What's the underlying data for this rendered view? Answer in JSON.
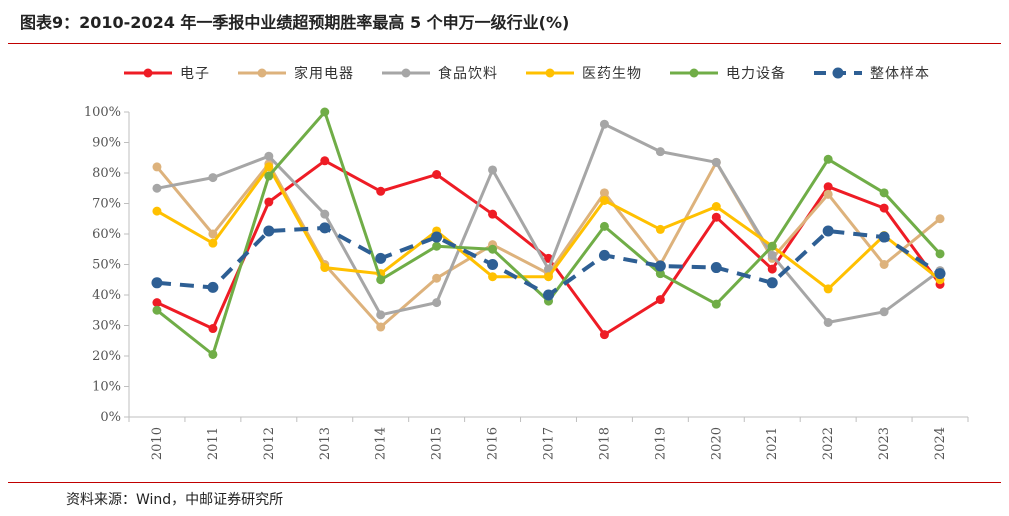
{
  "header": {
    "title": "图表9：2010-2024 年一季报中业绩超预期胜率最高 5 个申万一级行业(%)"
  },
  "footer": {
    "source": "资料来源：Wind，中邮证券研究所"
  },
  "chart_data": {
    "type": "line",
    "x": [
      "2010",
      "2011",
      "2012",
      "2013",
      "2014",
      "2015",
      "2016",
      "2017",
      "2018",
      "2019",
      "2020",
      "2021",
      "2022",
      "2023",
      "2024"
    ],
    "y_ticks": [
      "0%",
      "10%",
      "20%",
      "30%",
      "40%",
      "50%",
      "60%",
      "70%",
      "80%",
      "90%",
      "100%"
    ],
    "ylim": [
      0,
      100
    ],
    "legend_position": "top",
    "grid": false,
    "series": [
      {
        "name": "电子",
        "color": "#ee1c25",
        "dashed": false,
        "values": [
          37.5,
          29,
          70.5,
          84,
          74,
          79.5,
          66.5,
          52,
          27,
          38.5,
          65.5,
          48.5,
          75.5,
          68.5,
          43.5
        ]
      },
      {
        "name": "家用电器",
        "color": "#ddb27c",
        "dashed": false,
        "values": [
          82,
          60,
          83,
          50,
          29.5,
          45.5,
          56.5,
          47,
          73.5,
          50,
          83.5,
          52,
          73,
          50,
          65
        ]
      },
      {
        "name": "食品饮料",
        "color": "#a6a6a6",
        "dashed": false,
        "values": [
          75,
          78.5,
          85.5,
          66.5,
          33.5,
          37.5,
          81,
          48.5,
          96,
          87,
          83.5,
          53,
          31,
          34.5,
          48
        ]
      },
      {
        "name": "医药生物",
        "color": "#ffc000",
        "dashed": false,
        "values": [
          67.5,
          57,
          82,
          49,
          47,
          61,
          46,
          46,
          71,
          61.5,
          69,
          56,
          42,
          59.5,
          45
        ]
      },
      {
        "name": "电力设备",
        "color": "#70ad47",
        "dashed": false,
        "values": [
          35,
          20.5,
          79,
          100,
          45,
          56,
          55,
          38,
          62.5,
          47,
          37,
          56,
          84.5,
          73.5,
          53.5
        ]
      },
      {
        "name": "整体样本",
        "color": "#2e5f94",
        "dashed": true,
        "values": [
          44,
          42.5,
          61,
          62,
          52,
          59,
          50,
          40,
          53,
          49.5,
          49,
          44,
          61,
          59,
          47
        ]
      }
    ]
  }
}
